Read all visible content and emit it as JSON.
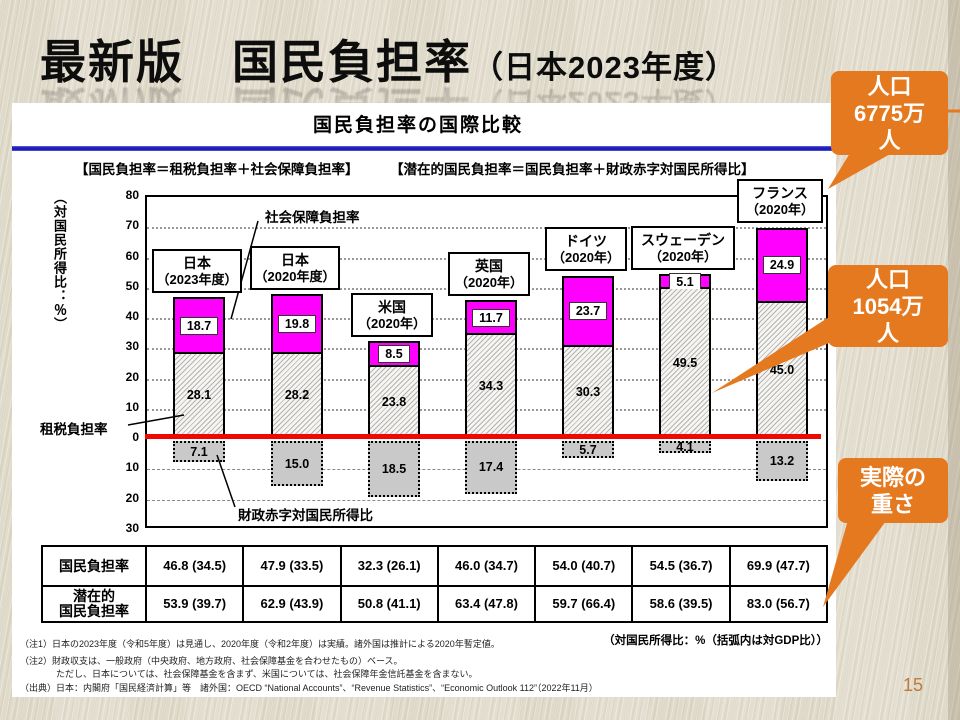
{
  "slide": {
    "title_main": "最新版　国民負担率",
    "title_paren": "（日本2023年度）",
    "page_number": "15"
  },
  "panel": {
    "chart_title": "国民負担率の国際比較",
    "formula_left": "【国民負担率＝租税負担率＋社会保障負担率】",
    "formula_right": "【潜在的国民負担率＝国民負担率＋財政赤字対国民所得比】",
    "y_axis_label": "（対国民所得比：％）",
    "legend_social": "社会保障負担率",
    "legend_tax": "租税負担率",
    "legend_deficit": "財政赤字対国民所得比"
  },
  "chart_data": {
    "type": "bar",
    "stacked": true,
    "ylabel": "対国民所得比：％",
    "ylim_above": [
      0,
      80
    ],
    "ylim_below": 30,
    "ticks_above": [
      "80",
      "70",
      "60",
      "50",
      "40",
      "30",
      "20",
      "10",
      "0"
    ],
    "ticks_below": [
      "10",
      "20",
      "30"
    ],
    "colors": {
      "social": "#ff00ff",
      "deficit_fill": "#c9c9c9",
      "zero_line": "#ee0800"
    },
    "countries": [
      {
        "name": "日本",
        "year": "（2023年度）",
        "tax": "28.1",
        "social": "18.7",
        "deficit": "7.1"
      },
      {
        "name": "日本",
        "year": "（2020年度）",
        "tax": "28.2",
        "social": "19.8",
        "deficit": "15.0"
      },
      {
        "name": "米国",
        "year": "（2020年）",
        "tax": "23.8",
        "social": "8.5",
        "deficit": "18.5"
      },
      {
        "name": "英国",
        "year": "（2020年）",
        "tax": "34.3",
        "social": "11.7",
        "deficit": "17.4"
      },
      {
        "name": "ドイツ",
        "year": "（2020年）",
        "tax": "30.3",
        "social": "23.7",
        "deficit": "5.7"
      },
      {
        "name": "スウェーデン",
        "year": "（2020年）",
        "tax": "49.5",
        "social": "5.1",
        "deficit": "4.1"
      },
      {
        "name": "フランス",
        "year": "（2020年）",
        "tax": "45.0",
        "social": "24.9",
        "deficit": "13.2"
      }
    ]
  },
  "table": {
    "rows": [
      {
        "label": [
          "国民負担率"
        ],
        "values": [
          "46.8 (34.5)",
          "47.9 (33.5)",
          "32.3 (26.1)",
          "46.0 (34.7)",
          "54.0 (40.7)",
          "54.5 (36.7)",
          "69.9 (47.7)"
        ]
      },
      {
        "label": [
          "潜在的",
          "国民負担率"
        ],
        "values": [
          "53.9 (39.7)",
          "62.9 (43.9)",
          "50.8 (41.1)",
          "63.4 (47.8)",
          "59.7 (66.4)",
          "58.6 (39.5)",
          "83.0 (56.7)"
        ]
      }
    ],
    "unit_note": "（対国民所得比：%（括弧内は対GDP比））"
  },
  "notes": [
    "（注1）日本の2023年度（令和5年度）は見通し、2020年度（令和2年度）は実績。諸外国は推計による2020年暫定値。",
    "（注2）財政収支は、一般政府（中央政府、地方政府、社会保障基金を合わせたもの）ベース。",
    "　　　　ただし、日本については、社会保障基金を含まず、米国については、社会保障年金信託基金を含まない。",
    "（出典）日本：内閣府「国民経済計算」等　諸外国：OECD “National Accounts”、“Revenue Statistics”、“Economic Outlook 112”（2022年11月）"
  ],
  "callouts": [
    {
      "lines": [
        "人口",
        "6775万",
        "人"
      ]
    },
    {
      "lines": [
        "人口",
        "1054万",
        "人"
      ]
    },
    {
      "lines": [
        "実際の",
        "重さ"
      ]
    }
  ]
}
